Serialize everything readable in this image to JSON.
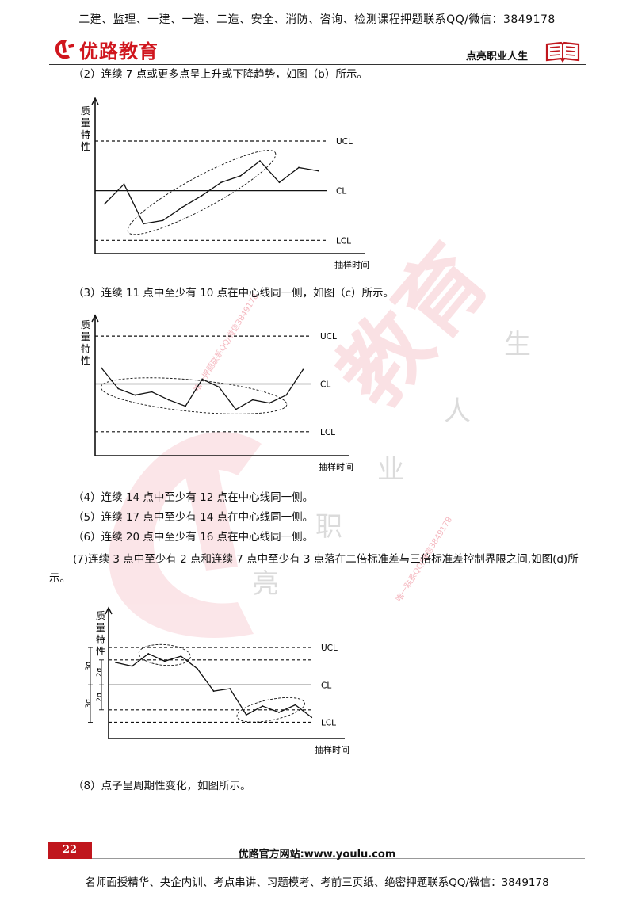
{
  "header": {
    "banner": "二建、监理、一建、一造、二造、安全、消防、咨询、检测课程押题联系QQ/微信：3849178",
    "logo_text": "优路教育",
    "slogan": "点亮职业人生"
  },
  "paragraphs": {
    "p2": "（2）连续 7 点或更多点呈上升或下降趋势，如图（b）所示。",
    "p3": "（3）连续 11 点中至少有 10 点在中心线同一侧，如图（c）所示。",
    "p4": "（4）连续 14 点中至少有 12 点在中心线同一侧。",
    "p5": "（5）连续 17 点中至少有 14 点在中心线同一侧。",
    "p6": "（6）连续 20 点中至少有 16 点在中心线同一侧。",
    "p7": "(7)连续 3 点中至少有 2 点和连续 7 点中至少有 3 点落在二倍标准差与三倍标准差控制界限之间,如图(d)所示。",
    "p8": "（8）点子呈周期性变化，如图所示。"
  },
  "chart_data": [
    {
      "type": "line",
      "id": "b",
      "ylabel": "质量特性",
      "xlabel": "抽样时间",
      "limits": {
        "UCL": 3,
        "CL": 0,
        "LCL": -3
      },
      "limit_labels": [
        "UCL",
        "CL",
        "LCL"
      ],
      "ylim": [
        -3.8,
        5.3
      ],
      "x": [
        1,
        2,
        3,
        4,
        5,
        6,
        7,
        8,
        9,
        10,
        11,
        12
      ],
      "values": [
        -0.8,
        0.4,
        -2.0,
        -1.8,
        -1.0,
        -0.3,
        0.5,
        0.9,
        1.8,
        0.5,
        1.4,
        1.2
      ],
      "annotations": [
        {
          "shape": "ellipse",
          "around_points": [
            3,
            9
          ]
        }
      ]
    },
    {
      "type": "line",
      "id": "c",
      "ylabel": "质量特性",
      "xlabel": "抽样时间",
      "limits": {
        "UCL": 3,
        "CL": 0,
        "LCL": -3
      },
      "limit_labels": [
        "UCL",
        "CL",
        "LCL"
      ],
      "ylim": [
        -4.5,
        4.0
      ],
      "segments": [
        {
          "x": [
            1,
            2,
            3,
            4,
            5,
            6,
            7,
            8,
            9,
            10,
            11
          ],
          "values": [
            1.0,
            -0.3,
            -0.7,
            -0.5,
            -1.0,
            -1.4,
            0.3,
            -0.2,
            -1.6,
            -1.0,
            -1.2
          ]
        },
        {
          "x": [
            11,
            12,
            13
          ],
          "values": [
            -1.2,
            -0.7,
            0.9
          ]
        }
      ],
      "annotations": [
        {
          "shape": "ellipse",
          "around_points": [
            2,
            11
          ]
        }
      ]
    },
    {
      "type": "line",
      "id": "d",
      "ylabel": "质量特性",
      "xlabel": "抽样时间",
      "limits": {
        "UCL": 3,
        "CL": 0,
        "LCL": -3
      },
      "limit_labels": [
        "UCL",
        "CL",
        "LCL"
      ],
      "sigma_labels": [
        "3σ",
        "2σ",
        "2σ",
        "3σ"
      ],
      "ylim": [
        -4.3,
        5.8
      ],
      "x": [
        1,
        2,
        3,
        4,
        5,
        6,
        7,
        8,
        9,
        10,
        11,
        12,
        13
      ],
      "values": [
        1.8,
        1.5,
        2.5,
        1.9,
        2.3,
        1.3,
        -0.5,
        -0.3,
        -2.4,
        -1.7,
        -2.2,
        -1.6,
        -2.6
      ],
      "annotations": [
        {
          "shape": "ellipse",
          "around_points": [
            3,
            5
          ]
        },
        {
          "shape": "ellipse",
          "around_points": [
            9,
            12
          ]
        }
      ]
    }
  ],
  "footer": {
    "page_number": "22",
    "site": "优路官方网站:www.youlu.com",
    "banner": "名师面授精华、央企内训、考点串讲、习题模考、考前三页纸、绝密押题联系QQ/微信：3849178"
  },
  "watermark": {
    "big_text": "教育",
    "slogan_chars": [
      "生",
      "人",
      "业",
      "职",
      "亮"
    ],
    "contact_1": "唯一押题联系QQ/微信3849178",
    "contact_2": "唯一联系QQ/微信3849178",
    "color": "#e2334a"
  }
}
